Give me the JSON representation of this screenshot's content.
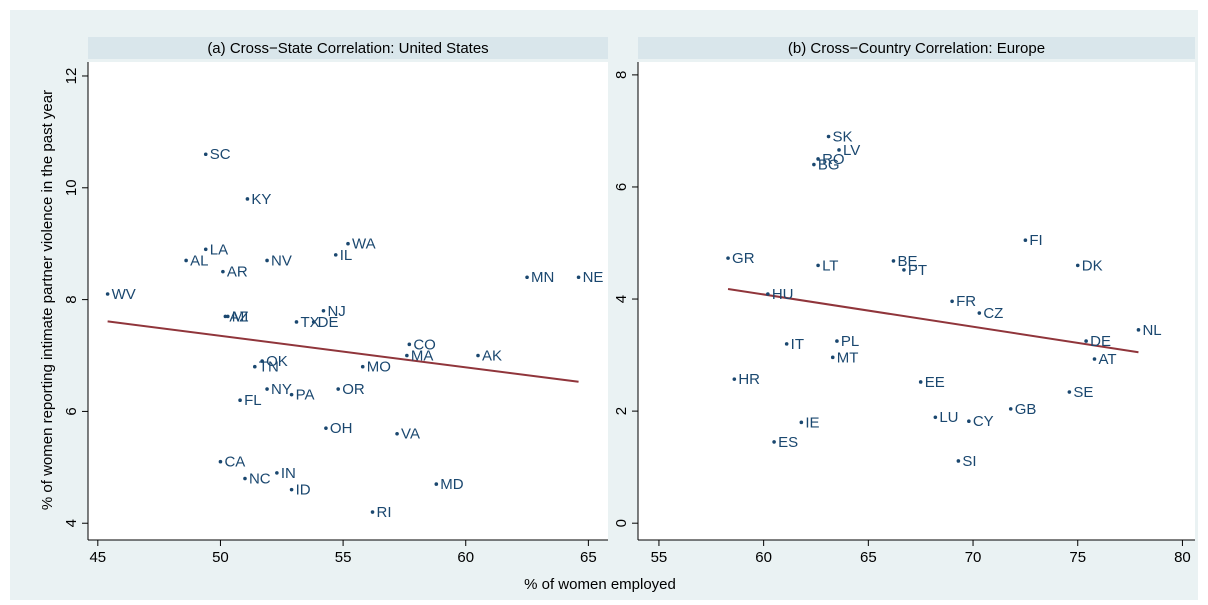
{
  "xlabel": "% of women employed",
  "ylabel": "% of women reporting intimate partner violence in the past year",
  "chart_data": [
    {
      "type": "scatter",
      "title": "(a) Cross−State Correlation: United States",
      "color": "#1a476f",
      "label_color": "#1a476f",
      "labels": [
        "WV",
        "SC",
        "KY",
        "LA",
        "AL",
        "AR",
        "NV",
        "IL",
        "WA",
        "MN",
        "NE",
        "AZ",
        "MI",
        "TX",
        "DE",
        "NJ",
        "CO",
        "MA",
        "AK",
        "TN",
        "OK",
        "MO",
        "NY",
        "PA",
        "OR",
        "FL",
        "OH",
        "VA",
        "CA",
        "NC",
        "IN",
        "ID",
        "MD",
        "RI"
      ],
      "x": [
        45.4,
        49.4,
        51.1,
        49.4,
        48.6,
        50.1,
        51.9,
        54.7,
        55.2,
        62.5,
        64.6,
        50.2,
        50.3,
        53.1,
        53.8,
        54.2,
        57.7,
        57.6,
        60.5,
        51.4,
        51.7,
        55.8,
        51.9,
        52.9,
        54.8,
        50.8,
        54.3,
        57.2,
        50.0,
        51.0,
        52.3,
        52.9,
        58.8,
        56.2
      ],
      "values": [
        8.1,
        10.6,
        9.8,
        8.9,
        8.7,
        8.5,
        8.7,
        8.8,
        9.0,
        8.4,
        8.4,
        7.7,
        7.7,
        7.6,
        7.6,
        7.8,
        7.2,
        7.0,
        7.0,
        6.8,
        6.9,
        6.8,
        6.4,
        6.3,
        6.4,
        6.2,
        5.7,
        5.6,
        5.1,
        4.8,
        4.9,
        4.6,
        4.7,
        4.2
      ],
      "fit": {
        "x": [
          45.4,
          64.6
        ],
        "values": [
          7.61,
          6.53
        ],
        "color": "#90353b"
      },
      "xlim": [
        44.6,
        65.8
      ],
      "ylim": [
        3.7,
        12.25
      ],
      "xticks": [
        45,
        50,
        55,
        60,
        65
      ],
      "yticks": [
        4,
        6,
        8,
        10,
        12
      ]
    },
    {
      "type": "scatter",
      "title": "(b) Cross−Country Correlation: Europe",
      "color": "#1a476f",
      "label_color": "#1a476f",
      "labels": [
        "SK",
        "LV",
        "BG",
        "RO",
        "FI",
        "GR",
        "LT",
        "BE",
        "PT",
        "DK",
        "HU",
        "FR",
        "CZ",
        "NL",
        "DE",
        "IT",
        "PL",
        "AT",
        "MT",
        "HR",
        "EE",
        "SE",
        "GB",
        "LU",
        "CY",
        "IE",
        "ES",
        "SI"
      ],
      "x": [
        63.1,
        63.6,
        62.4,
        62.6,
        72.5,
        58.3,
        62.6,
        66.2,
        66.7,
        75.0,
        60.2,
        69.0,
        70.3,
        77.9,
        75.4,
        61.1,
        63.5,
        75.8,
        63.3,
        58.6,
        67.5,
        74.6,
        71.8,
        68.2,
        69.8,
        61.8,
        60.5,
        69.3
      ],
      "values": [
        6.9,
        6.66,
        6.4,
        6.5,
        5.05,
        4.73,
        4.6,
        4.68,
        4.52,
        4.6,
        4.09,
        3.96,
        3.75,
        3.45,
        3.25,
        3.2,
        3.25,
        2.93,
        2.96,
        2.57,
        2.52,
        2.34,
        2.04,
        1.89,
        1.82,
        1.8,
        1.45,
        1.11
      ],
      "fit": {
        "x": [
          58.3,
          77.9
        ],
        "values": [
          4.18,
          3.05
        ],
        "color": "#90353b"
      },
      "xlim": [
        54.0,
        80.6
      ],
      "ylim": [
        -0.3,
        8.23
      ],
      "xticks": [
        55,
        60,
        65,
        70,
        75,
        80
      ],
      "yticks": [
        0,
        2,
        4,
        6,
        8
      ]
    }
  ]
}
